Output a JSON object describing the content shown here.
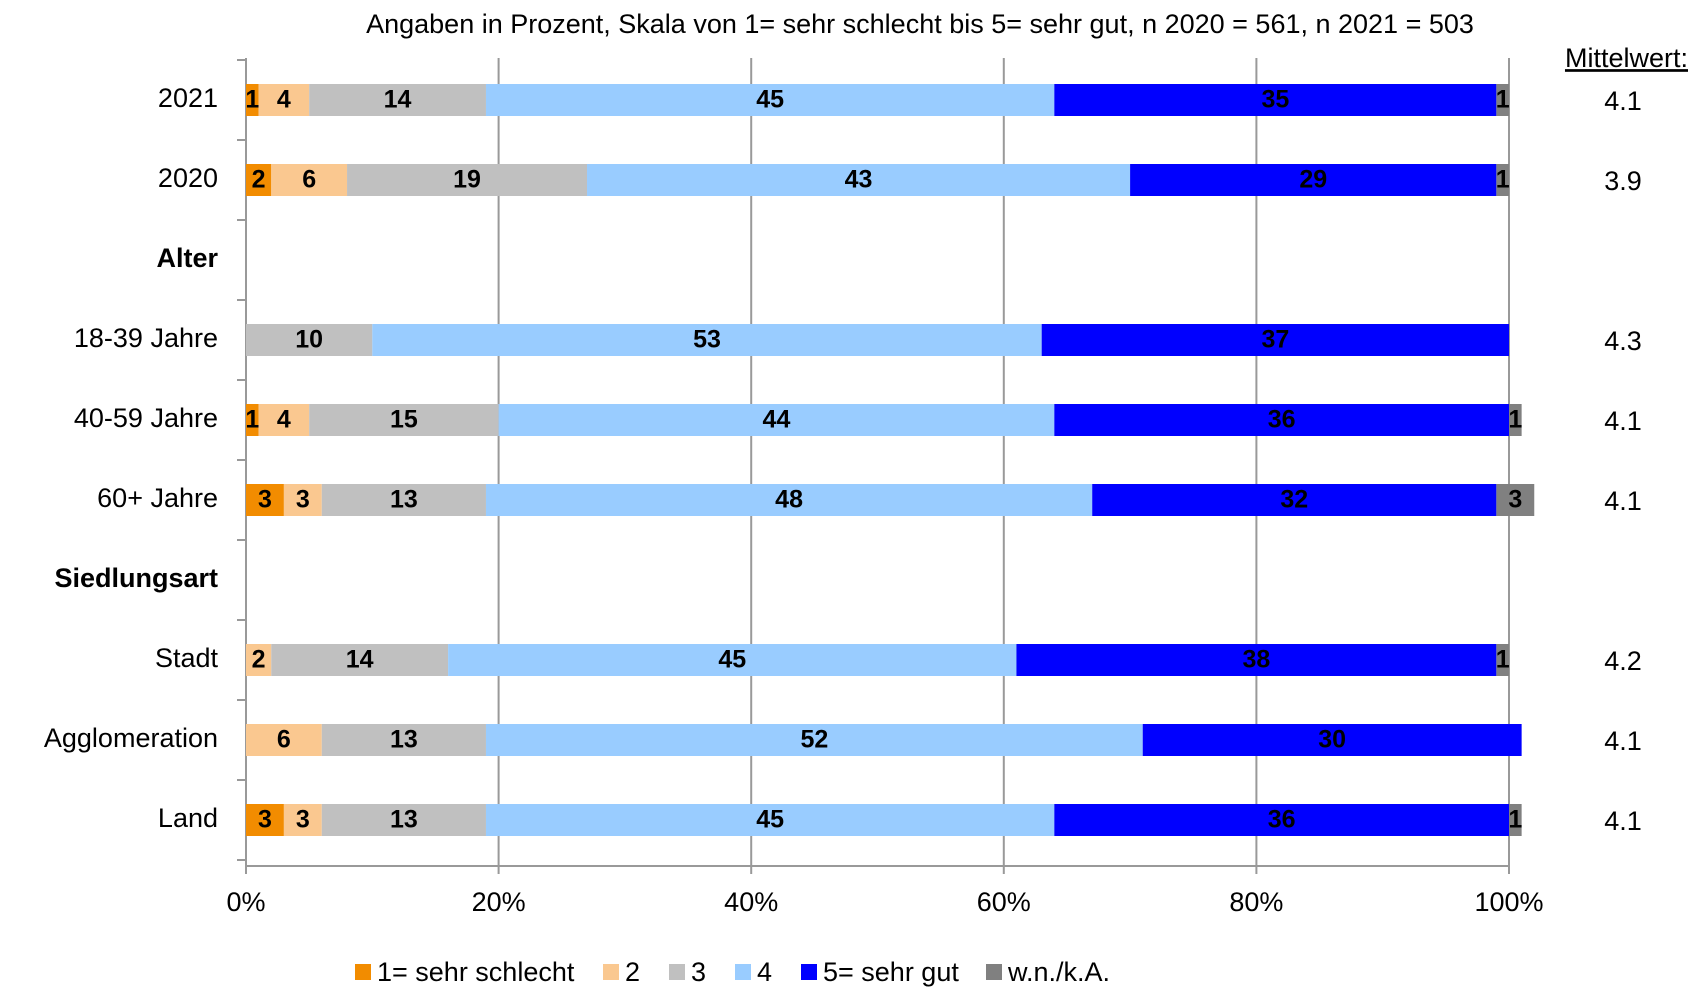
{
  "chart_data": {
    "type": "stacked_bar_horizontal",
    "title": "Angaben in Prozent, Skala von 1= sehr schlecht bis 5= sehr gut, n 2020 = 561, n 2021 = 503",
    "categories": [
      "2021",
      "2020",
      "Alter",
      "18-39 Jahre",
      "40-59 Jahre",
      "60+ Jahre",
      "Siedlungsart",
      "Stadt",
      "Agglomeration",
      "Land"
    ],
    "series": [
      {
        "name": "1= sehr schlecht",
        "color": "#f28c00",
        "values": [
          1,
          2,
          null,
          null,
          1,
          3,
          null,
          null,
          null,
          3
        ]
      },
      {
        "name": "2",
        "color": "#fac890",
        "values": [
          4,
          6,
          null,
          null,
          4,
          3,
          null,
          2,
          6,
          3
        ]
      },
      {
        "name": "3",
        "color": "#c0c0c0",
        "values": [
          14,
          19,
          null,
          10,
          15,
          13,
          null,
          14,
          13,
          13
        ]
      },
      {
        "name": "4",
        "color": "#99ccff",
        "values": [
          45,
          43,
          null,
          53,
          44,
          48,
          null,
          45,
          52,
          45
        ]
      },
      {
        "name": "5= sehr gut",
        "color": "#0000ff",
        "values": [
          35,
          29,
          null,
          37,
          36,
          32,
          null,
          38,
          30,
          36
        ]
      },
      {
        "name": "w.n./k.A.",
        "color": "#808080",
        "values": [
          1,
          1,
          null,
          null,
          1,
          3,
          null,
          1,
          null,
          1
        ]
      }
    ],
    "mean_header": "Mittelwert:",
    "means": [
      4.1,
      3.9,
      null,
      4.3,
      4.1,
      4.1,
      null,
      4.2,
      4.1,
      4.1
    ],
    "xlim": [
      0,
      100
    ],
    "xticks": [
      {
        "value": 0,
        "label": "0%"
      },
      {
        "value": 20,
        "label": "20%"
      },
      {
        "value": 40,
        "label": "40%"
      },
      {
        "value": 60,
        "label": "60%"
      },
      {
        "value": 80,
        "label": "80%"
      },
      {
        "value": 100,
        "label": "100%"
      }
    ],
    "grid": true
  }
}
